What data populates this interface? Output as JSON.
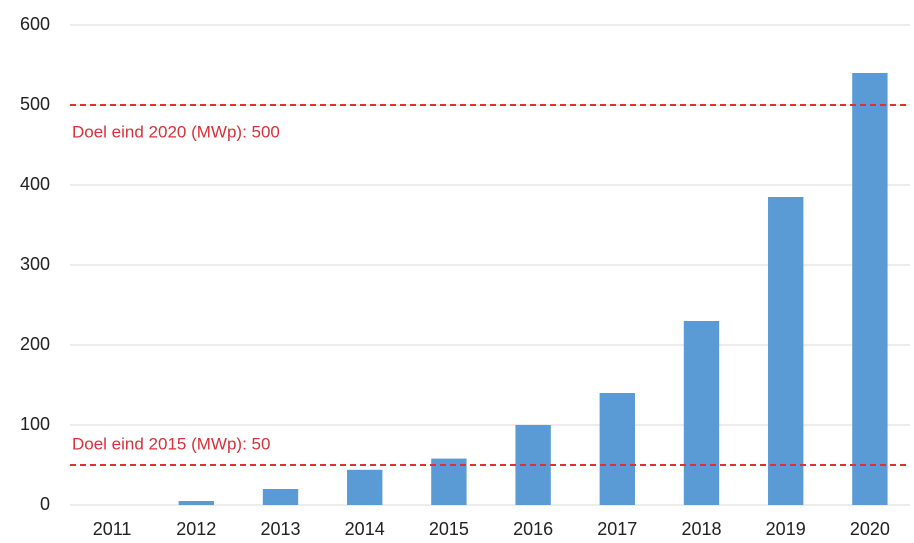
{
  "chart_data": {
    "type": "bar",
    "categories": [
      "2011",
      "2012",
      "2013",
      "2014",
      "2015",
      "2016",
      "2017",
      "2018",
      "2019",
      "2020"
    ],
    "values": [
      0,
      5,
      20,
      44,
      58,
      100,
      140,
      230,
      385,
      540
    ],
    "color": "#5b9bd5",
    "ylim": [
      0,
      600
    ],
    "yticks": [
      0,
      100,
      200,
      300,
      400,
      500,
      600
    ],
    "grid": true,
    "reference_lines": [
      {
        "value": 500,
        "label": "Doel eind 2020 (MWp): 500",
        "color": "#e0302f"
      },
      {
        "value": 50,
        "label": "Doel eind 2015 (MWp): 50",
        "color": "#e0302f"
      }
    ]
  }
}
